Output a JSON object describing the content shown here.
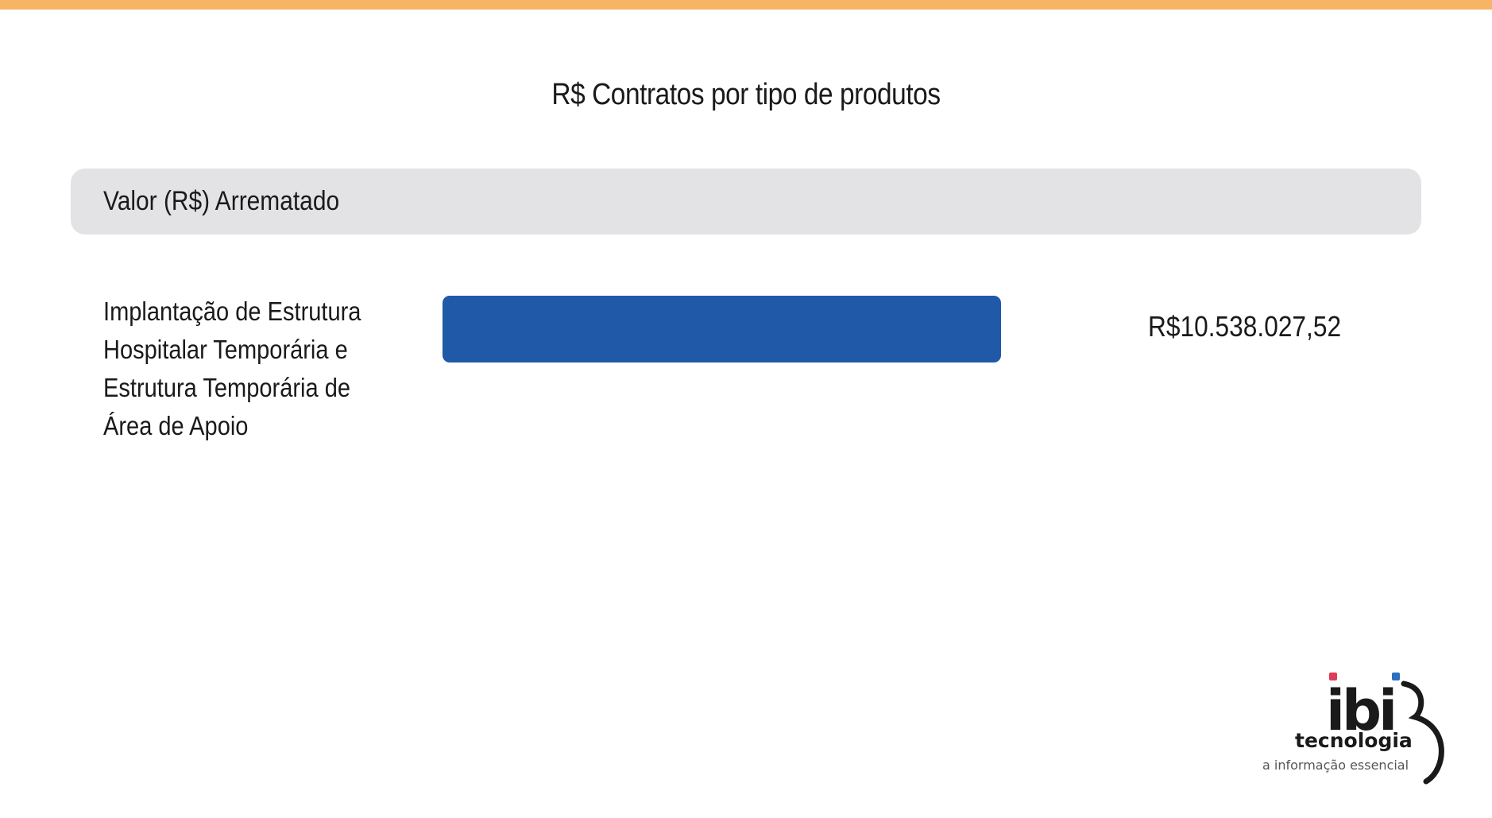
{
  "colors": {
    "top_bar": "#f7b465",
    "bar": "#2059a8",
    "header_panel": "#e3e3e5",
    "logo_dot_red": "#e03c5a",
    "logo_dot_blue": "#2a6fc0"
  },
  "header": {
    "label": "Valor (R$) Arrematado"
  },
  "chart_data": {
    "type": "bar",
    "orientation": "horizontal",
    "title": "R$ Contratos por tipo de produtos",
    "categories": [
      "Implantação de Estrutura Hospitalar Temporária e Estrutura Temporária de Área de Apoio"
    ],
    "series": [
      {
        "name": "Valor (R$) Arrematado",
        "values": [
          10538027.52
        ],
        "labels": [
          "R$10.538.027,52"
        ]
      }
    ],
    "xlim": [
      0,
      12600000
    ],
    "grid": false
  },
  "logo": {
    "wordmark": "ibi",
    "name": "tecnologia",
    "tagline": "a informação essencial"
  }
}
